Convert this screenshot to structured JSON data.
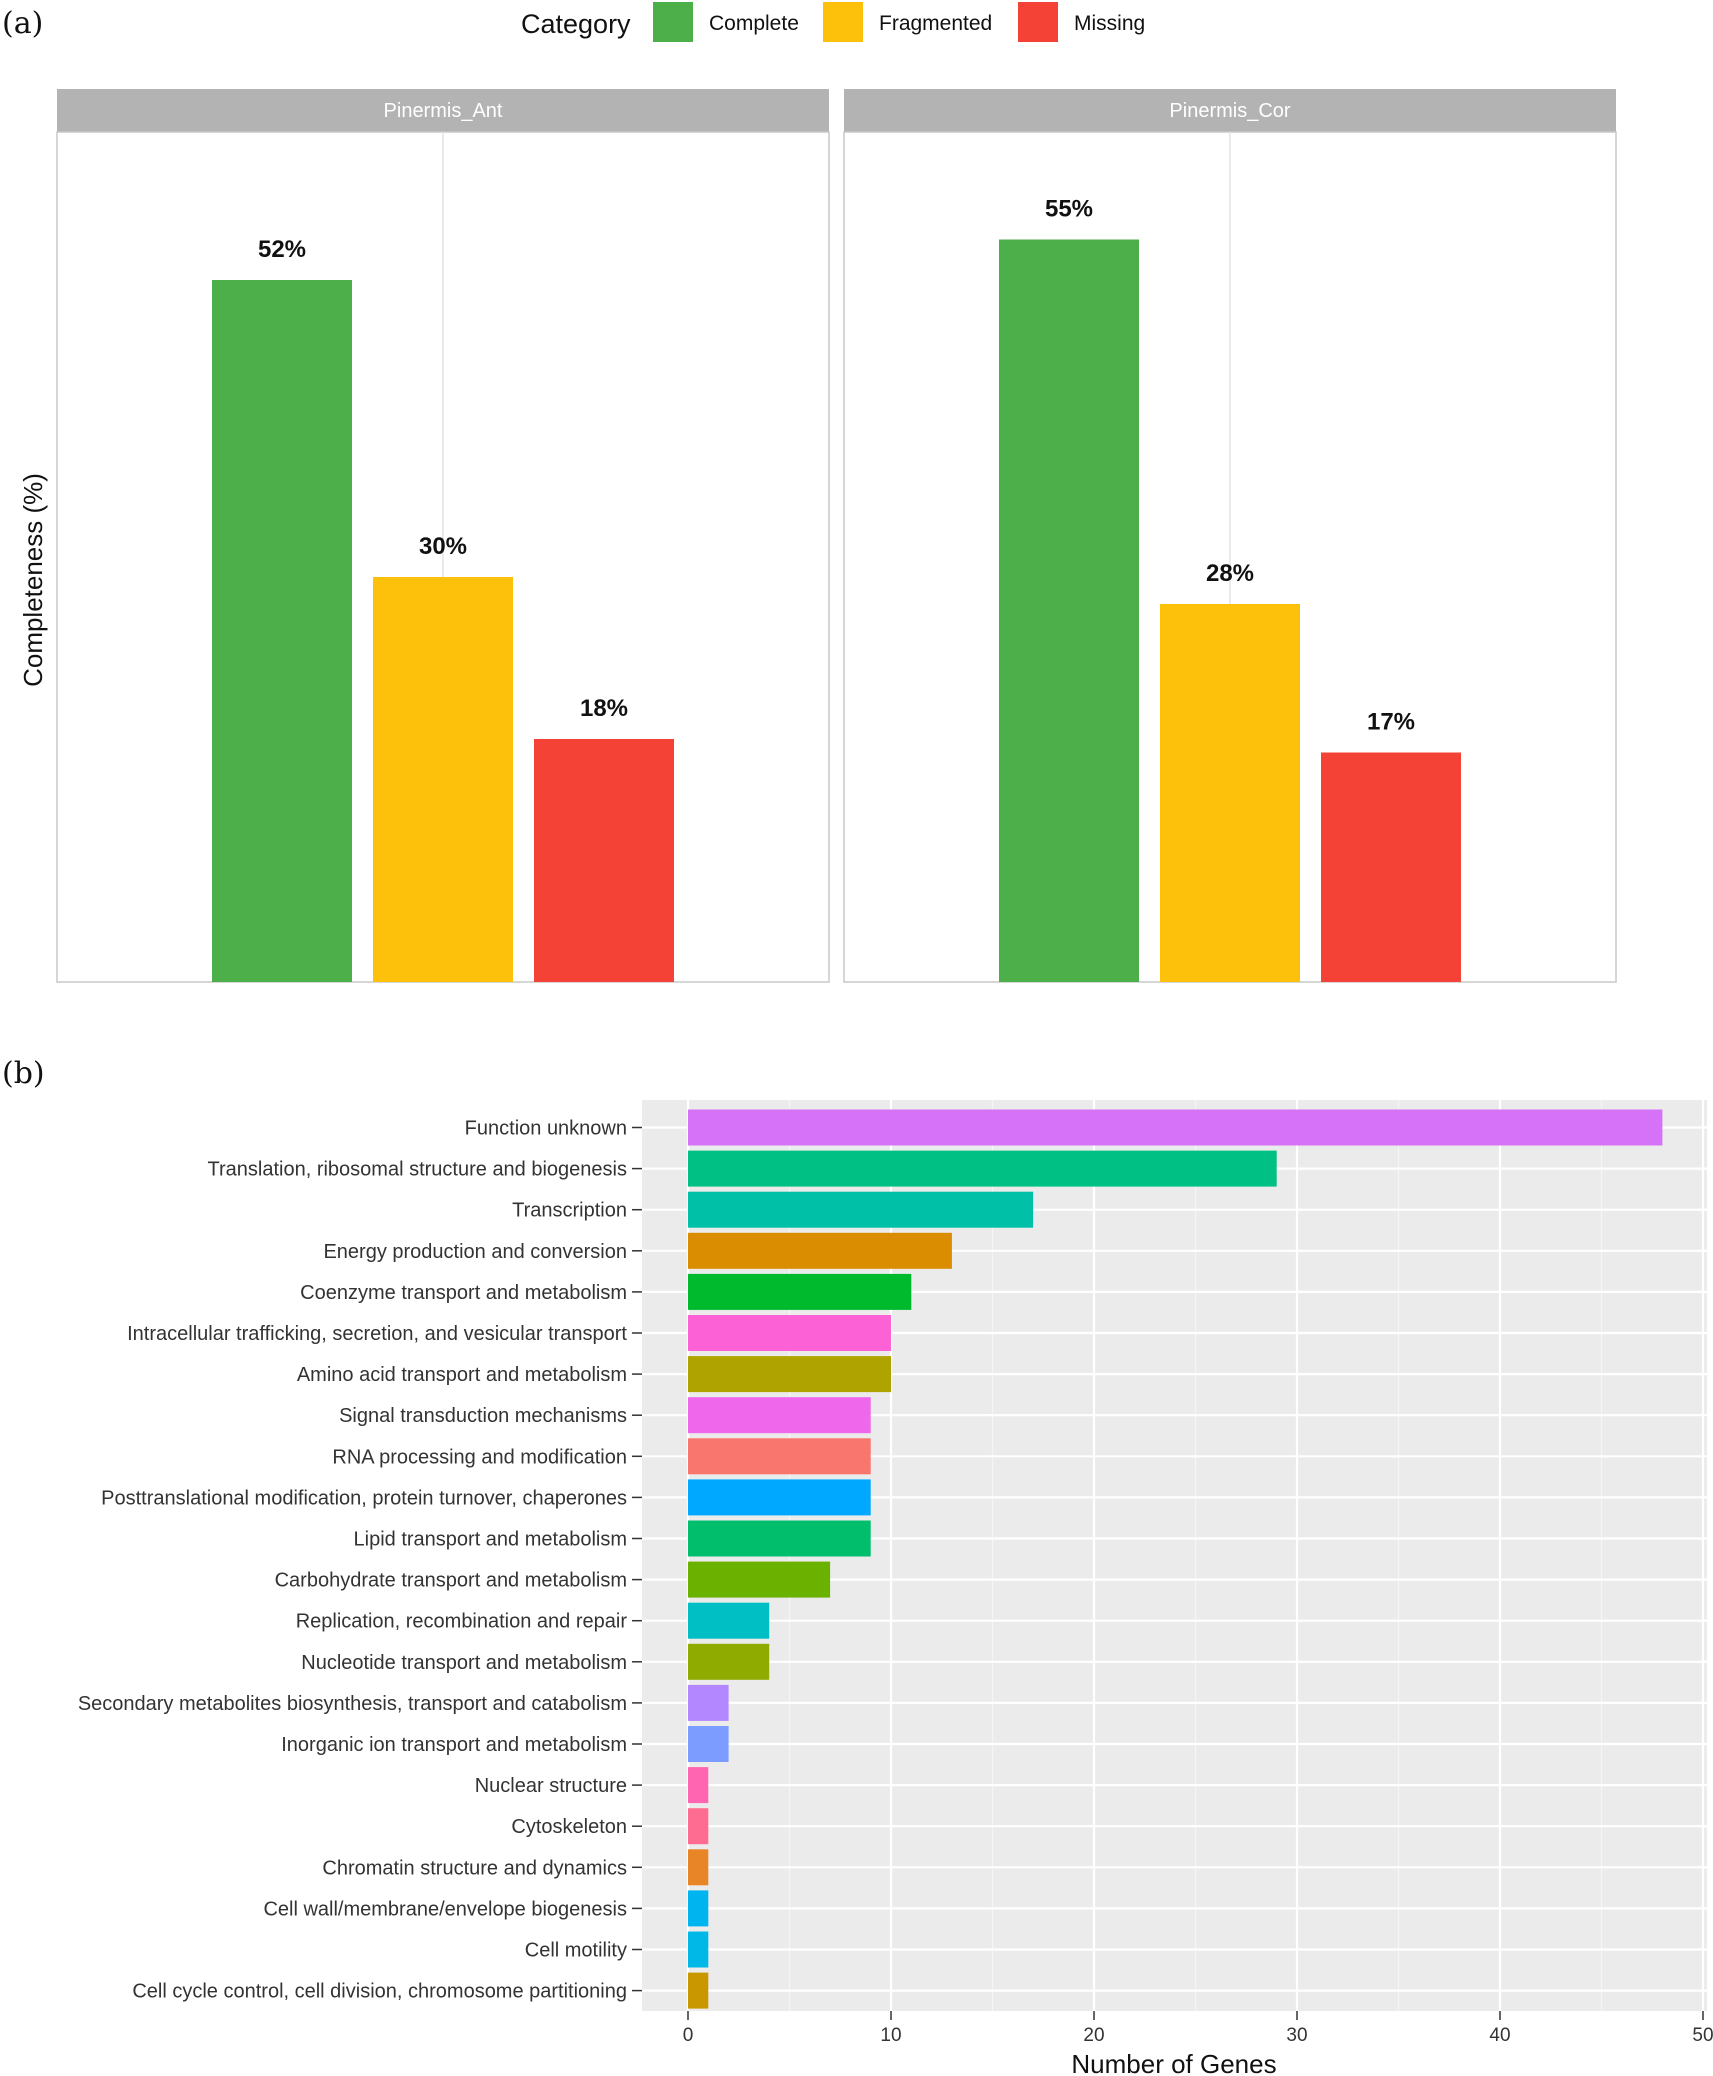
{
  "panel_a_tag": "(a)",
  "panel_b_tag": "(b)",
  "chart_data": [
    {
      "type": "bar",
      "title": "",
      "ylabel": "Completeness (%)",
      "xlabel": "",
      "legend": {
        "title": "Category",
        "position": "top",
        "entries": [
          {
            "label": "Complete",
            "color": "#4daf4a"
          },
          {
            "label": "Fragmented",
            "color": "#fdc10c"
          },
          {
            "label": "Missing",
            "color": "#f44336"
          }
        ]
      },
      "facets": [
        {
          "name": "Pinermis_Ant",
          "categories": [
            "Complete",
            "Fragmented",
            "Missing"
          ],
          "values": [
            52,
            30,
            18
          ],
          "labels": [
            "52%",
            "30%",
            "18%"
          ]
        },
        {
          "name": "Pinermis_Cor",
          "categories": [
            "Complete",
            "Fragmented",
            "Missing"
          ],
          "values": [
            55,
            28,
            17
          ],
          "labels": [
            "55%",
            "28%",
            "17%"
          ]
        }
      ],
      "ylim": [
        0,
        55
      ],
      "grid": true
    },
    {
      "type": "bar",
      "orientation": "horizontal",
      "title": "",
      "xlabel": "Number of Genes",
      "ylabel": "",
      "xlim": [
        -2.3,
        50.2
      ],
      "xticks": [
        0,
        10,
        20,
        30,
        40,
        50
      ],
      "grid": true,
      "categories": [
        "Function unknown",
        "Translation, ribosomal structure and biogenesis",
        "Transcription",
        "Energy production and conversion",
        "Coenzyme transport and metabolism",
        "Intracellular trafficking, secretion, and vesicular transport",
        "Amino acid transport and metabolism",
        "Signal transduction mechanisms",
        "RNA processing and modification",
        "Posttranslational modification, protein turnover, chaperones",
        "Lipid transport and metabolism",
        "Carbohydrate transport and metabolism",
        "Replication, recombination and repair",
        "Nucleotide transport and metabolism",
        "Secondary metabolites biosynthesis, transport and catabolism",
        "Inorganic ion transport and metabolism",
        "Nuclear structure",
        "Cytoskeleton",
        "Chromatin structure and dynamics",
        "Cell wall/membrane/envelope biogenesis",
        "Cell motility",
        "Cell cycle control, cell division, chromosome partitioning"
      ],
      "values": [
        48,
        29,
        17,
        13,
        11,
        10,
        10,
        9,
        9,
        9,
        9,
        7,
        4,
        4,
        2,
        2,
        1,
        1,
        1,
        1,
        1,
        1
      ],
      "colors": [
        "#d572f7",
        "#00c183",
        "#00c0a8",
        "#da8d00",
        "#00ba2e",
        "#fc61d5",
        "#afa300",
        "#ef67eb",
        "#f8766d",
        "#00a9ff",
        "#00be6c",
        "#6bb100",
        "#00bfc4",
        "#8fab00",
        "#b287ff",
        "#7c9cff",
        "#ff65b0",
        "#ff6c92",
        "#e88526",
        "#00b4ef",
        "#00b8e7",
        "#c99800"
      ]
    }
  ]
}
